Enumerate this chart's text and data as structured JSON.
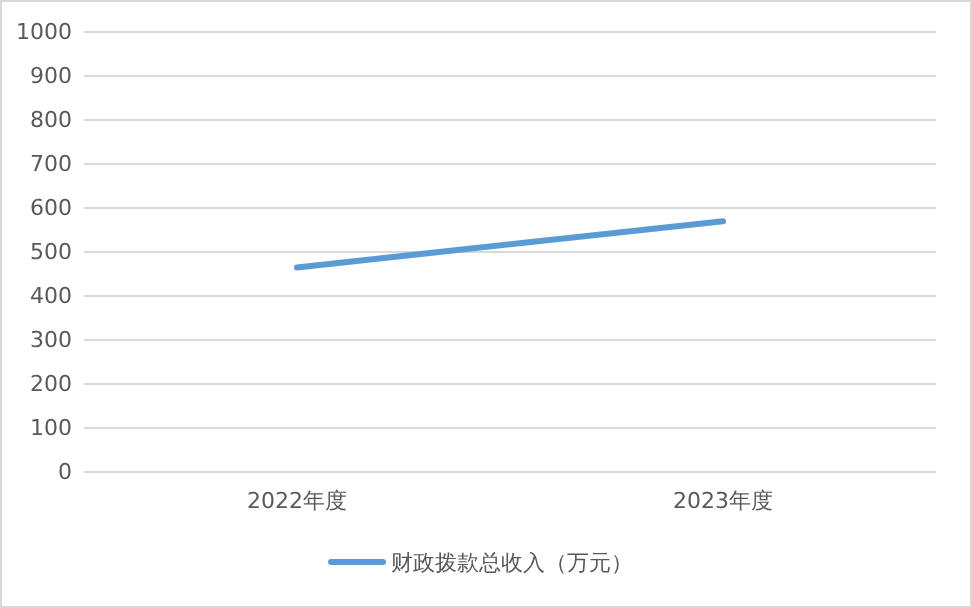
{
  "chart_data": {
    "type": "line",
    "categories": [
      "2022年度",
      "2023年度"
    ],
    "series": [
      {
        "name": "财政拨款总收入（万元）",
        "color": "#5b9bd5",
        "values": [
          465,
          570
        ]
      }
    ],
    "ylim": [
      0,
      1000
    ],
    "yticks": [
      0,
      100,
      200,
      300,
      400,
      500,
      600,
      700,
      800,
      900,
      1000
    ],
    "grid": "y",
    "legend": "bottom",
    "marker": "none",
    "line_style": "solid"
  }
}
